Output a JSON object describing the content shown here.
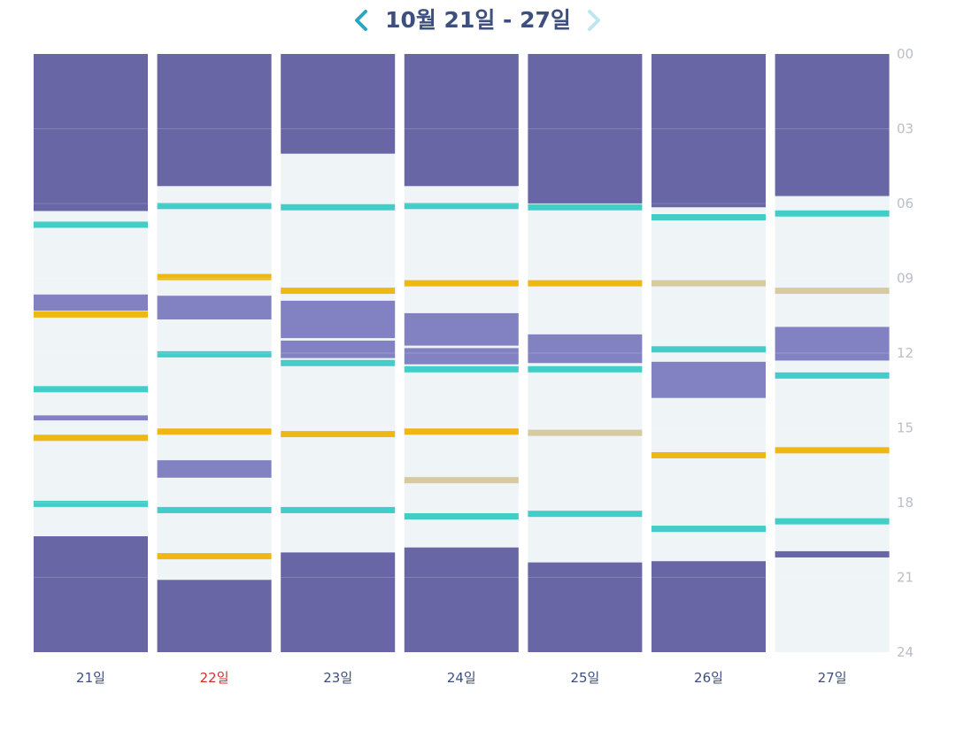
{
  "header": {
    "title": "10월 21일 - 27일",
    "prev_icon": "chevron-left-icon",
    "next_icon": "chevron-right-icon"
  },
  "colors": {
    "sleep": "#6866a4",
    "nap": "#8282c2",
    "awake": "#eff4f7",
    "teal_marker": "#42cdc8",
    "yellow_marker": "#efb711",
    "tan_marker": "#d8ca9f",
    "today_label": "#d0312d",
    "label": "#3c4f7e",
    "hour_label": "#b9bec8"
  },
  "chart_data": {
    "type": "timeline",
    "y_unit": "hour",
    "ylim": [
      0,
      24
    ],
    "hour_ticks": [
      "00",
      "03",
      "06",
      "09",
      "12",
      "15",
      "18",
      "21",
      "24"
    ],
    "categories": [
      "21일",
      "22일",
      "23일",
      "24일",
      "25일",
      "26일",
      "27일"
    ],
    "today_index": 1,
    "days": [
      {
        "label": "21일",
        "sleep": [
          [
            0,
            6.3
          ],
          [
            19.35,
            24
          ]
        ],
        "nap": [
          [
            9.65,
            10.3
          ],
          [
            14.5,
            14.7
          ]
        ],
        "markers": [
          {
            "t": 6.85,
            "type": "teal"
          },
          {
            "t": 10.45,
            "type": "yellow"
          },
          {
            "t": 13.45,
            "type": "teal"
          },
          {
            "t": 15.4,
            "type": "yellow"
          },
          {
            "t": 18.05,
            "type": "teal"
          }
        ]
      },
      {
        "label": "22일",
        "sleep": [
          [
            0,
            5.3
          ],
          [
            21.1,
            24
          ]
        ],
        "nap": [
          [
            9.7,
            10.65
          ],
          [
            16.3,
            17.0
          ]
        ],
        "markers": [
          {
            "t": 6.1,
            "type": "teal"
          },
          {
            "t": 8.95,
            "type": "yellow"
          },
          {
            "t": 12.05,
            "type": "teal"
          },
          {
            "t": 15.15,
            "type": "yellow"
          },
          {
            "t": 18.3,
            "type": "teal"
          },
          {
            "t": 20.15,
            "type": "yellow"
          }
        ]
      },
      {
        "label": "23일",
        "sleep": [
          [
            0,
            4.0
          ],
          [
            20.0,
            24
          ]
        ],
        "nap": [
          [
            9.9,
            11.4
          ],
          [
            11.5,
            12.2
          ]
        ],
        "markers": [
          {
            "t": 6.15,
            "type": "teal"
          },
          {
            "t": 9.5,
            "type": "yellow"
          },
          {
            "t": 12.4,
            "type": "teal"
          },
          {
            "t": 15.25,
            "type": "yellow"
          },
          {
            "t": 18.3,
            "type": "teal"
          }
        ]
      },
      {
        "label": "24일",
        "sleep": [
          [
            0,
            5.3
          ],
          [
            19.8,
            24
          ]
        ],
        "nap": [
          [
            10.4,
            11.7
          ],
          [
            11.8,
            12.45
          ]
        ],
        "markers": [
          {
            "t": 6.1,
            "type": "teal"
          },
          {
            "t": 9.2,
            "type": "yellow"
          },
          {
            "t": 12.65,
            "type": "teal"
          },
          {
            "t": 15.15,
            "type": "yellow"
          },
          {
            "t": 17.1,
            "type": "tan"
          },
          {
            "t": 18.55,
            "type": "teal"
          }
        ]
      },
      {
        "label": "25일",
        "sleep": [
          [
            0,
            6.0
          ],
          [
            20.4,
            24
          ]
        ],
        "nap": [
          [
            11.25,
            12.4
          ]
        ],
        "markers": [
          {
            "t": 6.15,
            "type": "teal"
          },
          {
            "t": 9.2,
            "type": "yellow"
          },
          {
            "t": 12.65,
            "type": "teal"
          },
          {
            "t": 15.2,
            "type": "tan"
          },
          {
            "t": 18.45,
            "type": "teal"
          }
        ]
      },
      {
        "label": "26일",
        "sleep": [
          [
            0,
            6.15
          ],
          [
            20.35,
            24
          ]
        ],
        "nap": [
          [
            12.35,
            13.8
          ]
        ],
        "markers": [
          {
            "t": 6.55,
            "type": "teal"
          },
          {
            "t": 9.2,
            "type": "tan"
          },
          {
            "t": 11.85,
            "type": "teal"
          },
          {
            "t": 16.1,
            "type": "yellow"
          },
          {
            "t": 19.05,
            "type": "teal"
          }
        ]
      },
      {
        "label": "27일",
        "sleep": [
          [
            0,
            5.7
          ],
          [
            19.95,
            20.2
          ]
        ],
        "nap": [
          [
            10.95,
            12.3
          ]
        ],
        "markers": [
          {
            "t": 6.4,
            "type": "teal"
          },
          {
            "t": 9.5,
            "type": "tan"
          },
          {
            "t": 12.9,
            "type": "teal"
          },
          {
            "t": 15.9,
            "type": "yellow"
          },
          {
            "t": 18.75,
            "type": "teal"
          }
        ]
      }
    ]
  }
}
